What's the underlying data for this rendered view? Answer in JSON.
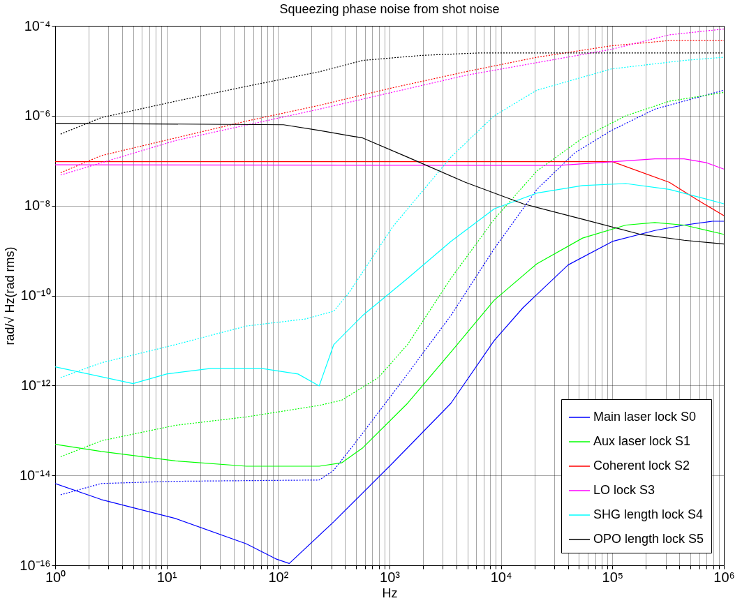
{
  "chart_data": {
    "type": "line",
    "title": "Squeezing phase noise from shot noise",
    "xlabel": "Hz",
    "ylabel": "rad/√ Hz(rad rms)",
    "log": "xy",
    "grid": true,
    "legend": "bottom right",
    "marker": "none",
    "xlim": [
      1,
      1000000
    ],
    "ylim": [
      1e-16,
      0.0001
    ],
    "xticks": [
      {
        "value": 1,
        "label": "10⁰"
      },
      {
        "value": 2,
        "label": null
      },
      {
        "value": 3,
        "label": null
      },
      {
        "value": 4,
        "label": null
      },
      {
        "value": 5,
        "label": null
      },
      {
        "value": 6,
        "label": null
      },
      {
        "value": 7,
        "label": null
      },
      {
        "value": 8,
        "label": null
      },
      {
        "value": 9,
        "label": null
      },
      {
        "value": 10,
        "label": "10¹"
      },
      {
        "value": 20,
        "label": null
      },
      {
        "value": 30,
        "label": null
      },
      {
        "value": 40,
        "label": null
      },
      {
        "value": 50,
        "label": null
      },
      {
        "value": 60,
        "label": null
      },
      {
        "value": 70,
        "label": null
      },
      {
        "value": 80,
        "label": null
      },
      {
        "value": 90,
        "label": null
      },
      {
        "value": 100,
        "label": "10²"
      },
      {
        "value": 200,
        "label": null
      },
      {
        "value": 300,
        "label": null
      },
      {
        "value": 400,
        "label": null
      },
      {
        "value": 500,
        "label": null
      },
      {
        "value": 600,
        "label": null
      },
      {
        "value": 700,
        "label": null
      },
      {
        "value": 800,
        "label": null
      },
      {
        "value": 900,
        "label": null
      },
      {
        "value": 1000,
        "label": "10³"
      },
      {
        "value": 2000,
        "label": null
      },
      {
        "value": 3000,
        "label": null
      },
      {
        "value": 4000,
        "label": null
      },
      {
        "value": 5000,
        "label": null
      },
      {
        "value": 6000,
        "label": null
      },
      {
        "value": 7000,
        "label": null
      },
      {
        "value": 8000,
        "label": null
      },
      {
        "value": 9000,
        "label": null
      },
      {
        "value": 10000,
        "label": "10⁴"
      },
      {
        "value": 20000,
        "label": null
      },
      {
        "value": 30000,
        "label": null
      },
      {
        "value": 40000,
        "label": null
      },
      {
        "value": 50000,
        "label": null
      },
      {
        "value": 60000,
        "label": null
      },
      {
        "value": 70000,
        "label": null
      },
      {
        "value": 80000,
        "label": null
      },
      {
        "value": 90000,
        "label": null
      },
      {
        "value": 100000,
        "label": "10⁵"
      },
      {
        "value": 200000,
        "label": null
      },
      {
        "value": 300000,
        "label": null
      },
      {
        "value": 400000,
        "label": null
      },
      {
        "value": 500000,
        "label": null
      },
      {
        "value": 600000,
        "label": null
      },
      {
        "value": 700000,
        "label": null
      },
      {
        "value": 800000,
        "label": null
      },
      {
        "value": 900000,
        "label": null
      },
      {
        "value": 1000000,
        "label": "10⁶"
      }
    ],
    "yticks": [
      {
        "value": 1e-16,
        "label": "10⁻¹⁶"
      },
      {
        "value": 1e-14,
        "label": "10⁻¹⁴"
      },
      {
        "value": 1e-12,
        "label": "10⁻¹²"
      },
      {
        "value": 1e-10,
        "label": "10⁻¹⁰"
      },
      {
        "value": 1e-08,
        "label": "10⁻⁸"
      },
      {
        "value": 1e-06,
        "label": "10⁻⁶"
      },
      {
        "value": 0.0001,
        "label": "10⁻⁴"
      }
    ],
    "series": [
      {
        "name": "Main laser lock S0",
        "color": "#0000ff",
        "line_style": "solid",
        "x": [
          1,
          2.6,
          12,
          52,
          95,
          126,
          316,
          1070,
          3550,
          8700,
          15800,
          40000,
          100000,
          240000,
          440000,
          790000,
          1000000
        ],
        "values": [
          6.6e-15,
          2.9e-15,
          1.1e-15,
          3e-16,
          1.4e-16,
          1.1e-16,
          9.3e-16,
          1.9e-14,
          4e-13,
          1e-11,
          5.4e-11,
          4.8e-10,
          1.6e-09,
          2.8e-09,
          3.7e-09,
          4.5e-09,
          4.5e-09
        ]
      },
      {
        "color": "#0000ff",
        "line_style": "dotted",
        "x": [
          1.12,
          2.6,
          12,
          234,
          316,
          575,
          1450,
          3550,
          8700,
          21000,
          46000,
          98000,
          240000,
          1000000
        ],
        "values": [
          3.7e-15,
          6.6e-15,
          7.4e-15,
          7.9e-15,
          1.3e-14,
          8.7e-14,
          1.8e-12,
          3.6e-11,
          1.1e-09,
          2.3e-08,
          1.5e-07,
          4.7e-07,
          1.4e-06,
          3.7e-06
        ]
      },
      {
        "name": "Aux laser lock S1",
        "color": "#00ff00",
        "line_style": "solid",
        "x": [
          1,
          2.6,
          12,
          52,
          234,
          372,
          575,
          1450,
          3550,
          8700,
          21000,
          54000,
          132000,
          240000,
          440000,
          1000000
        ],
        "values": [
          4.9e-14,
          3.4e-14,
          2.1e-14,
          1.6e-14,
          1.6e-14,
          1.9e-14,
          4.1e-14,
          4e-13,
          5.5e-12,
          7.9e-11,
          5.1e-10,
          1.9e-09,
          3.7e-09,
          4.2e-09,
          3.7e-09,
          2.3e-09
        ]
      },
      {
        "color": "#00ff00",
        "line_style": "dotted",
        "x": [
          1.12,
          2.6,
          12,
          52,
          234,
          372,
          794,
          1450,
          3550,
          8700,
          21000,
          54000,
          132000,
          324000,
          1000000
        ],
        "values": [
          2.6e-14,
          5.9e-14,
          1.3e-13,
          2e-13,
          3.6e-13,
          4.7e-13,
          1.5e-12,
          8.1e-12,
          2.4e-10,
          5e-09,
          5.9e-08,
          3.2e-07,
          1e-06,
          2.1e-06,
          3.3e-06
        ]
      },
      {
        "name": "Coherent lock S2",
        "color": "#ff0000",
        "line_style": "solid",
        "x": [
          1,
          100000,
          324000,
          590000,
          1000000
        ],
        "values": [
          9.5e-08,
          9.5e-08,
          3.3e-08,
          1.3e-08,
          6e-09
        ]
      },
      {
        "color": "#ff0000",
        "line_style": "dotted",
        "x": [
          1.12,
          2.6,
          12,
          52,
          234,
          1070,
          4800,
          21000,
          98000,
          324000,
          1000000
        ],
        "values": [
          5.4e-08,
          1.3e-07,
          3.2e-07,
          7.6e-07,
          1.7e-06,
          4.2e-06,
          9.5e-06,
          2e-05,
          3.6e-05,
          4.7e-05,
          4.7e-05
        ]
      },
      {
        "name": "LO lock S3",
        "color": "#ff00ff",
        "line_style": "solid",
        "x": [
          1,
          34000,
          240000,
          440000,
          700000,
          1000000
        ],
        "values": [
          8.1e-08,
          7.9e-08,
          1.1e-07,
          1.1e-07,
          9e-08,
          6.5e-08
        ]
      },
      {
        "color": "#ff00ff",
        "line_style": "dotted",
        "x": [
          1.12,
          12,
          234,
          4800,
          98000,
          324000,
          1000000
        ],
        "values": [
          4.8e-08,
          2.8e-07,
          1.4e-06,
          7.9e-06,
          3e-05,
          6.3e-05,
          8.5e-05
        ]
      },
      {
        "name": "SHG length lock S4",
        "color": "#00ffff",
        "line_style": "solid",
        "x": [
          1,
          5,
          10,
          25,
          71,
          151,
          234,
          316,
          575,
          1450,
          3550,
          8700,
          21000,
          54000,
          132000,
          324000,
          1000000
        ],
        "values": [
          2.6e-12,
          1.1e-12,
          1.8e-12,
          2.4e-12,
          2.4e-12,
          1.8e-12,
          9.8e-13,
          8.1e-12,
          3.6e-11,
          2.4e-10,
          1.6e-09,
          8.5e-09,
          1.9e-08,
          2.8e-08,
          3.1e-08,
          2.3e-08,
          1.1e-08
        ]
      },
      {
        "color": "#00ffff",
        "line_style": "dotted",
        "x": [
          1.12,
          2.6,
          12,
          52,
          174,
          316,
          427,
          1070,
          3550,
          8700,
          21000,
          98000,
          440000,
          1000000
        ],
        "values": [
          1.5e-12,
          3.2e-12,
          8.1e-12,
          2.1e-11,
          3e-11,
          4.5e-11,
          1.1e-10,
          3.4e-09,
          1.2e-07,
          1e-06,
          3.7e-06,
          1.1e-05,
          1.7e-05,
          2e-05
        ]
      },
      {
        "name": "OPO length lock S5",
        "color": "#000000",
        "line_style": "solid",
        "x": [
          1,
          112,
          234,
          575,
          1450,
          4800,
          15800,
          54000,
          178000,
          440000,
          1000000
        ],
        "values": [
          6.8e-07,
          6.3e-07,
          4.7e-07,
          3.2e-07,
          1.2e-07,
          3.3e-08,
          1.1e-08,
          5e-09,
          2.3e-09,
          1.7e-09,
          1.4e-09
        ]
      },
      {
        "color": "#000000",
        "line_style": "dotted",
        "x": [
          1.12,
          2.6,
          12,
          52,
          234,
          575,
          1950,
          6500,
          1000000
        ],
        "values": [
          3.9e-07,
          9.1e-07,
          2.1e-06,
          4.5e-06,
          9.5e-06,
          1.7e-05,
          2.2e-05,
          2.5e-05,
          2.5e-05
        ]
      }
    ]
  }
}
